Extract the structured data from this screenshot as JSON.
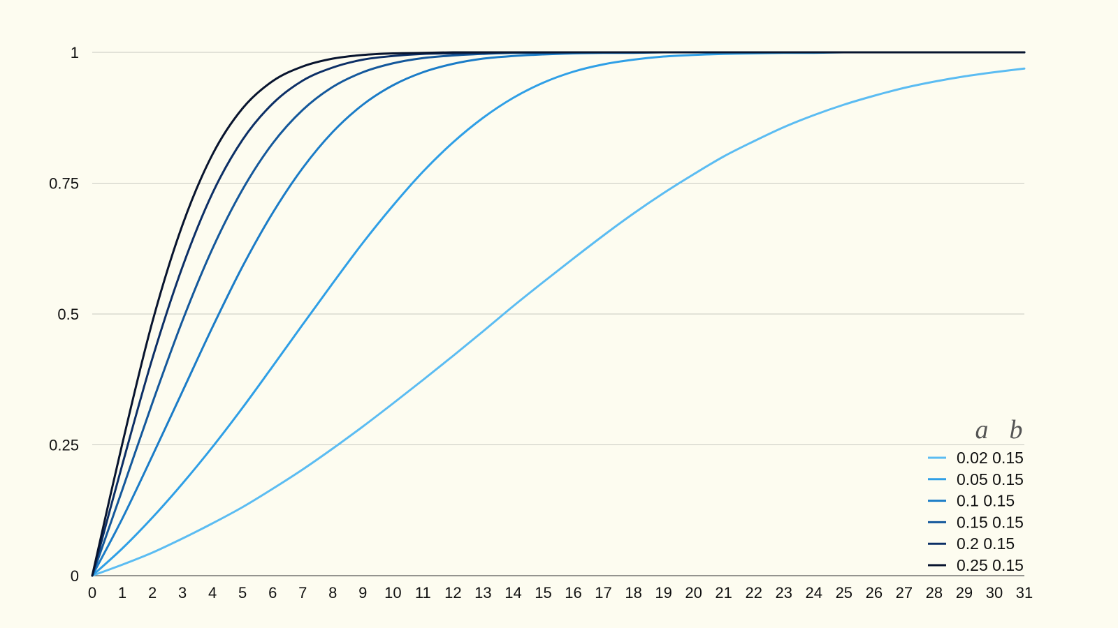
{
  "chart_data": {
    "type": "line",
    "title": "",
    "xlabel": "",
    "ylabel": "",
    "xlim": [
      0,
      31
    ],
    "ylim": [
      0,
      1
    ],
    "x_ticks": [
      "0",
      "1",
      "2",
      "3",
      "4",
      "5",
      "6",
      "7",
      "8",
      "9",
      "10",
      "11",
      "12",
      "13",
      "14",
      "15",
      "16",
      "17",
      "18",
      "19",
      "20",
      "21",
      "22",
      "23",
      "24",
      "25",
      "26",
      "27",
      "28",
      "29",
      "30",
      "31"
    ],
    "y_ticks": [
      "0",
      "0.25",
      "0.5",
      "0.75",
      "1"
    ],
    "grid": "horizontal",
    "legend_position": "bottom-right",
    "legend_header": [
      "a",
      "b"
    ],
    "colors": {
      "background": "#fdfcf0",
      "grid": "#c8c8c0",
      "axis": "#555555"
    },
    "x": [
      0,
      1,
      2,
      3,
      4,
      5,
      6,
      7,
      8,
      9,
      10,
      11,
      12,
      13,
      14,
      15,
      16,
      17,
      18,
      19,
      20,
      21,
      22,
      23,
      24,
      25,
      26,
      27,
      28,
      29,
      30,
      31
    ],
    "series": [
      {
        "name": "0.02 0.15",
        "a": "0.02",
        "b": "0.15",
        "color": "#5bbcf2",
        "values": [
          0.0,
          0.021,
          0.044,
          0.071,
          0.1,
          0.131,
          0.166,
          0.203,
          0.243,
          0.285,
          0.329,
          0.374,
          0.42,
          0.467,
          0.515,
          0.561,
          0.606,
          0.65,
          0.692,
          0.731,
          0.767,
          0.801,
          0.83,
          0.857,
          0.88,
          0.9,
          0.917,
          0.932,
          0.944,
          0.954,
          0.962,
          0.969
        ]
      },
      {
        "name": "0.05 0.15",
        "a": "0.05",
        "b": "0.15",
        "color": "#2f9fe6",
        "values": [
          0.0,
          0.052,
          0.111,
          0.176,
          0.246,
          0.321,
          0.4,
          0.48,
          0.559,
          0.636,
          0.707,
          0.772,
          0.828,
          0.875,
          0.913,
          0.942,
          0.963,
          0.977,
          0.986,
          0.992,
          0.995,
          0.997,
          0.998,
          0.999,
          0.999,
          1.0,
          1.0,
          1.0,
          1.0,
          1.0,
          1.0,
          1.0
        ]
      },
      {
        "name": "0.1 0.15",
        "a": "0.1",
        "b": "0.15",
        "color": "#1b7cc7",
        "values": [
          0.0,
          0.109,
          0.229,
          0.352,
          0.475,
          0.591,
          0.693,
          0.779,
          0.848,
          0.9,
          0.937,
          0.962,
          0.978,
          0.988,
          0.993,
          0.996,
          0.998,
          0.999,
          0.999,
          1.0,
          1.0,
          1.0,
          1.0,
          1.0,
          1.0,
          1.0,
          1.0,
          1.0,
          1.0,
          1.0,
          1.0,
          1.0
        ]
      },
      {
        "name": "0.15 0.15",
        "a": "0.15",
        "b": "0.15",
        "color": "#14589b",
        "values": [
          0.0,
          0.164,
          0.33,
          0.487,
          0.625,
          0.738,
          0.826,
          0.89,
          0.934,
          0.962,
          0.979,
          0.989,
          0.994,
          0.997,
          0.999,
          0.999,
          1.0,
          1.0,
          1.0,
          1.0,
          1.0,
          1.0,
          1.0,
          1.0,
          1.0,
          1.0,
          1.0,
          1.0,
          1.0,
          1.0,
          1.0,
          1.0
        ]
      },
      {
        "name": "0.2 0.15",
        "a": "0.2",
        "b": "0.15",
        "color": "#0c2f66",
        "values": [
          0.0,
          0.212,
          0.415,
          0.59,
          0.731,
          0.833,
          0.902,
          0.946,
          0.971,
          0.986,
          0.993,
          0.997,
          0.998,
          0.999,
          1.0,
          1.0,
          1.0,
          1.0,
          1.0,
          1.0,
          1.0,
          1.0,
          1.0,
          1.0,
          1.0,
          1.0,
          1.0,
          1.0,
          1.0,
          1.0,
          1.0,
          1.0
        ]
      },
      {
        "name": "0.25 0.15",
        "a": "0.25",
        "b": "0.15",
        "color": "#08142e",
        "values": [
          0.0,
          0.252,
          0.485,
          0.67,
          0.805,
          0.893,
          0.945,
          0.973,
          0.988,
          0.995,
          0.998,
          0.999,
          1.0,
          1.0,
          1.0,
          1.0,
          1.0,
          1.0,
          1.0,
          1.0,
          1.0,
          1.0,
          1.0,
          1.0,
          1.0,
          1.0,
          1.0,
          1.0,
          1.0,
          1.0,
          1.0,
          1.0
        ]
      }
    ]
  }
}
